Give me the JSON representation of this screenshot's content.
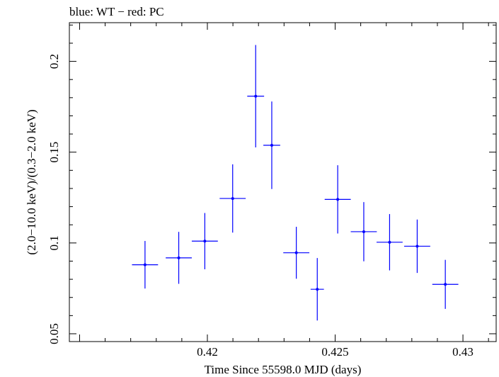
{
  "header": {
    "text": "blue: WT − red: PC"
  },
  "colors": {
    "series": "#0000ff",
    "axes": "#000000",
    "background": "#ffffff"
  },
  "chart_data": {
    "type": "scatter",
    "title": "",
    "xlabel": "Time Since 55598.0 MJD (days)",
    "ylabel": "(2.0−10.0 keV)/(0.3−2.0 keV)",
    "xlim": [
      0.4146,
      0.4313
    ],
    "ylim": [
      0.0457,
      0.2213
    ],
    "xticks": [
      0.42,
      0.425,
      0.43
    ],
    "xtick_labels": [
      "0.42",
      "0.425",
      "0.43"
    ],
    "yticks": [
      0.05,
      0.1,
      0.15,
      0.2
    ],
    "ytick_labels": [
      "0.05",
      "0.1",
      "0.15",
      "0.2"
    ],
    "grid": false,
    "legend": "none",
    "series": [
      {
        "color": "#0000ff",
        "points": [
          {
            "x": 0.41756,
            "y": 0.088,
            "xerr": 0.00051,
            "yerr_low": 0.0131,
            "yerr_high": 0.0131
          },
          {
            "x": 0.41888,
            "y": 0.0918,
            "xerr": 0.00051,
            "yerr_low": 0.0143,
            "yerr_high": 0.0143
          },
          {
            "x": 0.4199,
            "y": 0.101,
            "xerr": 0.00051,
            "yerr_low": 0.0155,
            "yerr_high": 0.0155
          },
          {
            "x": 0.42099,
            "y": 0.1245,
            "xerr": 0.00051,
            "yerr_low": 0.0188,
            "yerr_high": 0.0188
          },
          {
            "x": 0.42189,
            "y": 0.1808,
            "xerr": 0.00033,
            "yerr_low": 0.0282,
            "yerr_high": 0.0282
          },
          {
            "x": 0.42252,
            "y": 0.1538,
            "xerr": 0.00033,
            "yerr_low": 0.0241,
            "yerr_high": 0.0241
          },
          {
            "x": 0.42348,
            "y": 0.0946,
            "xerr": 0.00051,
            "yerr_low": 0.0143,
            "yerr_high": 0.0143
          },
          {
            "x": 0.4243,
            "y": 0.0745,
            "xerr": 0.00026,
            "yerr_low": 0.0172,
            "yerr_high": 0.0172
          },
          {
            "x": 0.4251,
            "y": 0.124,
            "xerr": 0.00051,
            "yerr_low": 0.0188,
            "yerr_high": 0.0188
          },
          {
            "x": 0.42612,
            "y": 0.1062,
            "xerr": 0.00051,
            "yerr_low": 0.0163,
            "yerr_high": 0.0163
          },
          {
            "x": 0.42713,
            "y": 0.1004,
            "xerr": 0.00051,
            "yerr_low": 0.0155,
            "yerr_high": 0.0155
          },
          {
            "x": 0.42821,
            "y": 0.0982,
            "xerr": 0.00051,
            "yerr_low": 0.0147,
            "yerr_high": 0.0147
          },
          {
            "x": 0.42931,
            "y": 0.0772,
            "xerr": 0.00051,
            "yerr_low": 0.0135,
            "yerr_high": 0.0135
          }
        ]
      }
    ]
  }
}
